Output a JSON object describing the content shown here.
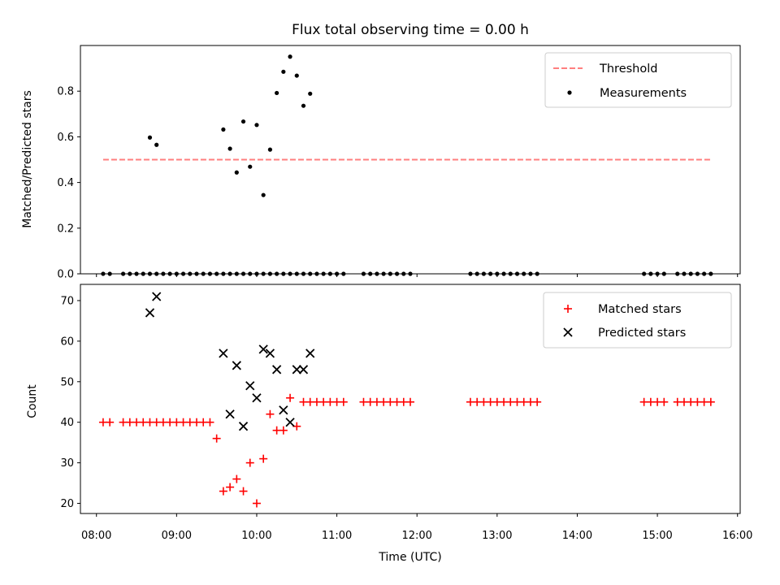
{
  "chart_data": [
    {
      "type": "scatter",
      "title": "Flux total observing time = 0.00 h",
      "xlabel": "",
      "ylabel": "Matched/Predicted stars",
      "ylim": [
        0,
        1.0
      ],
      "xlim": [
        "07:48",
        "16:02"
      ],
      "yticks": [
        0.0,
        0.2,
        0.4,
        0.6,
        0.8
      ],
      "ytick_labels": [
        "0.0",
        "0.2",
        "0.4",
        "0.6",
        "0.8"
      ],
      "legend_position": "upper right",
      "legend": [
        "Threshold",
        "Measurements"
      ],
      "threshold": {
        "name": "Threshold",
        "value": 0.5,
        "x": [
          "08:05",
          "15:40"
        ],
        "color": "#ff7f7f",
        "style": "dashed"
      },
      "series": [
        {
          "name": "Measurements",
          "marker": "dot",
          "color": "#000000",
          "x": [
            "08:05",
            "08:10",
            "08:20",
            "08:25",
            "08:30",
            "08:35",
            "08:40",
            "08:45",
            "08:50",
            "08:55",
            "09:00",
            "09:05",
            "09:10",
            "09:15",
            "09:20",
            "09:25",
            "09:30",
            "09:35",
            "09:40",
            "09:45",
            "09:50",
            "09:55",
            "10:00",
            "10:05",
            "10:10",
            "10:15",
            "10:20",
            "10:25",
            "10:30",
            "10:35",
            "10:40",
            "10:45",
            "10:50",
            "10:55",
            "11:00",
            "11:05",
            "11:20",
            "11:25",
            "11:30",
            "11:35",
            "11:40",
            "11:45",
            "11:50",
            "11:55",
            "12:40",
            "12:45",
            "12:50",
            "12:55",
            "13:00",
            "13:05",
            "13:10",
            "13:15",
            "13:20",
            "13:25",
            "13:30",
            "14:50",
            "14:55",
            "15:00",
            "15:05",
            "15:15",
            "15:20",
            "15:25",
            "15:30",
            "15:35",
            "15:40",
            "08:40",
            "08:45",
            "09:35",
            "09:40",
            "09:45",
            "09:50",
            "09:55",
            "10:00",
            "10:05",
            "10:10",
            "10:15",
            "10:20",
            "10:25",
            "10:30",
            "10:35",
            "10:40"
          ],
          "y": [
            0,
            0,
            0,
            0,
            0,
            0,
            0,
            0,
            0,
            0,
            0,
            0,
            0,
            0,
            0,
            0,
            0,
            0,
            0,
            0,
            0,
            0,
            0,
            0,
            0,
            0,
            0,
            0,
            0,
            0,
            0,
            0,
            0,
            0,
            0,
            0,
            0,
            0,
            0,
            0,
            0,
            0,
            0,
            0,
            0,
            0,
            0,
            0,
            0,
            0,
            0,
            0,
            0,
            0,
            0,
            0,
            0,
            0,
            0,
            0,
            0,
            0,
            0,
            0,
            0,
            0.597,
            0.565,
            0.632,
            0.548,
            0.444,
            0.667,
            0.469,
            0.652,
            0.345,
            0.544,
            0.792,
            0.885,
            0.951,
            0.868,
            0.736,
            0.789
          ]
        }
      ]
    },
    {
      "type": "scatter",
      "title": "",
      "xlabel": "Time (UTC)",
      "ylabel": "Count",
      "ylim": [
        17.5,
        74
      ],
      "xlim": [
        "07:48",
        "16:02"
      ],
      "yticks": [
        20,
        30,
        40,
        50,
        60,
        70
      ],
      "ytick_labels": [
        "20",
        "30",
        "40",
        "50",
        "60",
        "70"
      ],
      "xticks": [
        "08:00",
        "09:00",
        "10:00",
        "11:00",
        "12:00",
        "13:00",
        "14:00",
        "15:00",
        "16:00"
      ],
      "legend_position": "upper right",
      "legend": [
        "Matched stars",
        "Predicted stars"
      ],
      "series": [
        {
          "name": "Matched stars",
          "marker": "plus",
          "color": "#ff0000",
          "x": [
            "08:05",
            "08:10",
            "08:20",
            "08:25",
            "08:30",
            "08:35",
            "08:40",
            "08:45",
            "08:50",
            "08:55",
            "09:00",
            "09:05",
            "09:10",
            "09:15",
            "09:20",
            "09:25",
            "09:30",
            "09:35",
            "09:40",
            "09:45",
            "09:50",
            "09:55",
            "10:00",
            "10:05",
            "10:10",
            "10:15",
            "10:20",
            "10:25",
            "10:30",
            "10:35",
            "10:40",
            "10:45",
            "10:50",
            "10:55",
            "11:00",
            "11:05",
            "11:20",
            "11:25",
            "11:30",
            "11:35",
            "11:40",
            "11:45",
            "11:50",
            "11:55",
            "12:40",
            "12:45",
            "12:50",
            "12:55",
            "13:00",
            "13:05",
            "13:10",
            "13:15",
            "13:20",
            "13:25",
            "13:30",
            "14:50",
            "14:55",
            "15:00",
            "15:05",
            "15:15",
            "15:20",
            "15:25",
            "15:30",
            "15:35",
            "15:40"
          ],
          "y": [
            40,
            40,
            40,
            40,
            40,
            40,
            40,
            40,
            40,
            40,
            40,
            40,
            40,
            40,
            40,
            40,
            36,
            23,
            24,
            26,
            23,
            30,
            20,
            31,
            42,
            38,
            38,
            46,
            39,
            45,
            45,
            45,
            45,
            45,
            45,
            45,
            45,
            45,
            45,
            45,
            45,
            45,
            45,
            45,
            45,
            45,
            45,
            45,
            45,
            45,
            45,
            45,
            45,
            45,
            45,
            45,
            45,
            45,
            45,
            45,
            45,
            45,
            45,
            45,
            45
          ]
        },
        {
          "name": "Predicted stars",
          "marker": "x",
          "color": "#000000",
          "x": [
            "08:40",
            "08:45",
            "09:35",
            "09:40",
            "09:45",
            "09:50",
            "09:55",
            "10:00",
            "10:05",
            "10:10",
            "10:15",
            "10:20",
            "10:25",
            "10:30",
            "10:35",
            "10:40"
          ],
          "y": [
            67,
            71,
            57,
            42,
            54,
            39,
            49,
            46,
            58,
            57,
            53,
            43,
            40,
            53,
            53,
            57
          ]
        }
      ]
    }
  ]
}
